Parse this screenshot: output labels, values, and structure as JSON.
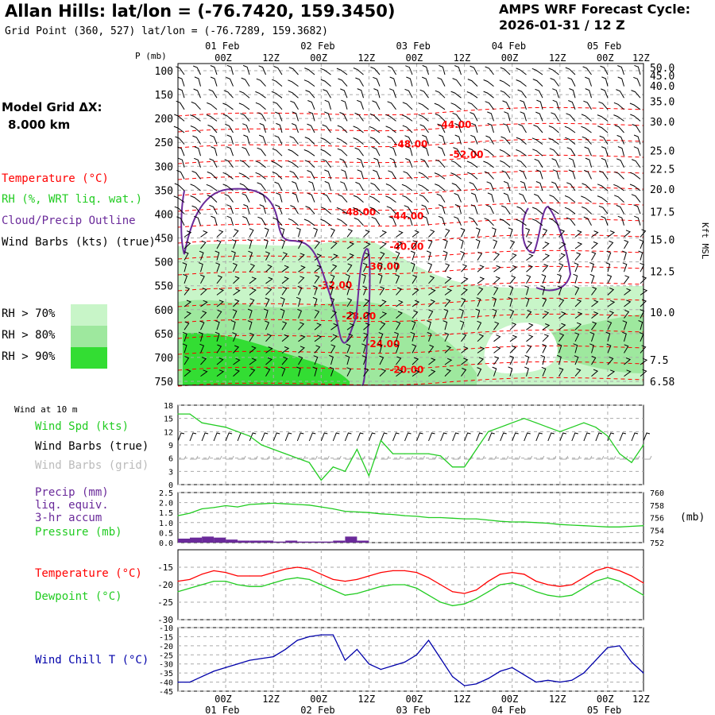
{
  "header": {
    "title": "Allan Hills:  lat/lon = (-76.7420, 159.3450)",
    "grid_point": "Grid Point (360, 527) lat/lon = (-76.7289, 159.3682)",
    "cycle_line1": "AMPS WRF Forecast Cycle:",
    "cycle_line2": "2026-01-31 / 12  Z",
    "model_dx_label": "Model Grid ΔX:",
    "model_dx_value": "8.000 km"
  },
  "legend": {
    "temperature": "Temperature (°C)",
    "rh": "RH (%, WRT liq. wat.)",
    "cloud": "Cloud/Precip Outline",
    "wind": "Wind Barbs (kts) (true)",
    "rh70": "RH > 70%",
    "rh80": "RH > 80%",
    "rh90": "RH > 90%",
    "wind10m": "Wind at 10 m",
    "wind_spd": "Wind Spd (kts)",
    "barbs_true": "Wind Barbs (true)",
    "barbs_grid": "Wind Barbs (grid)",
    "precip1": "Precip (mm)",
    "precip2": "liq. equiv.",
    "precip3": "3-hr accum",
    "pressure": "Pressure (mb)",
    "temp2": "Temperature (°C)",
    "dewpoint": "Dewpoint (°C)",
    "windchill": "Wind Chill T (°C)"
  },
  "colors": {
    "temp": "#ff0000",
    "green": "#22cc22",
    "cloud": "#6a2a9a",
    "chill": "#0000aa",
    "precip": "#6a2a9a",
    "rh70": "#c8f5c8",
    "rh80": "#9ee89e",
    "rh90": "#33dd33",
    "grey": "#aaaaaa"
  },
  "chart_data": [
    {
      "type": "heatmap",
      "name": "time-height cross section",
      "y_title": "P (mb)",
      "y_right_title": "Kft MSL",
      "ylim": [
        100,
        750
      ],
      "time_range_hours": [
        0,
        117
      ],
      "pressure_ticks": [
        "100",
        "150",
        "200",
        "250",
        "300",
        "350",
        "400",
        "450",
        "500",
        "550",
        "600",
        "650",
        "700",
        "750"
      ],
      "kft_ticks": [
        {
          "label": "50.0",
          "p": 93
        },
        {
          "label": "45.0",
          "p": 110
        },
        {
          "label": "40.0",
          "p": 132
        },
        {
          "label": "35.0",
          "p": 164
        },
        {
          "label": "30.0",
          "p": 206
        },
        {
          "label": "25.0",
          "p": 267
        },
        {
          "label": "22.5",
          "p": 305
        },
        {
          "label": "20.0",
          "p": 348
        },
        {
          "label": "17.5",
          "p": 395
        },
        {
          "label": "15.0",
          "p": 453
        },
        {
          "label": "12.5",
          "p": 520
        },
        {
          "label": "10.0",
          "p": 605
        },
        {
          "label": "7.5",
          "p": 705
        },
        {
          "label": "6.58",
          "p": 750
        }
      ],
      "temperature_labels": [
        {
          "text": "-44.00",
          "t": 66,
          "p": 213
        },
        {
          "text": "-48.00",
          "t": 55,
          "p": 254
        },
        {
          "text": "-52.00",
          "t": 69,
          "p": 275
        },
        {
          "text": "-48.00",
          "t": 42,
          "p": 396
        },
        {
          "text": "-44.00",
          "t": 54,
          "p": 404
        },
        {
          "text": "-40.00",
          "t": 54,
          "p": 468
        },
        {
          "text": "-36.00",
          "t": 48,
          "p": 510
        },
        {
          "text": "-32.00",
          "t": 36,
          "p": 549
        },
        {
          "text": "-28.00",
          "t": 42,
          "p": 614
        },
        {
          "text": "-24.00",
          "t": 48,
          "p": 672
        },
        {
          "text": "-20.00",
          "t": 54,
          "p": 726
        }
      ]
    },
    {
      "type": "line",
      "name": "wind speed 10 m",
      "ylim": [
        0,
        18
      ],
      "y_ticks": [
        "0",
        "3",
        "6",
        "9",
        "12",
        "15",
        "18"
      ],
      "x_hours": [
        0,
        3,
        6,
        9,
        12,
        15,
        18,
        21,
        24,
        27,
        30,
        33,
        36,
        39,
        42,
        45,
        48,
        51,
        54,
        57,
        60,
        63,
        66,
        69,
        72,
        75,
        78,
        81,
        84,
        87,
        90,
        93,
        96,
        99,
        102,
        105,
        108,
        111,
        114,
        117
      ],
      "series": [
        {
          "name": "Wind Spd (kts)",
          "values": [
            16,
            16,
            14,
            13.5,
            13,
            12,
            11,
            9,
            8,
            7,
            6,
            5,
            1,
            4,
            3,
            8,
            2,
            10,
            7,
            7,
            7,
            7,
            6.5,
            4,
            4,
            8,
            12,
            13,
            14,
            15,
            14,
            13,
            12,
            13,
            14,
            13,
            11,
            7,
            5,
            9
          ]
        }
      ]
    },
    {
      "type": "bar",
      "name": "precip and pressure",
      "ylim": [
        0,
        2.5
      ],
      "y_ticks": [
        "0.0",
        "0.5",
        "1.0",
        "1.5",
        "2.0",
        "2.5"
      ],
      "y2lim": [
        752,
        760
      ],
      "y2_ticks": [
        "752",
        "754",
        "756",
        "758",
        "760"
      ],
      "y2_unit": "(mb)",
      "precip_values": [
        0.2,
        0.25,
        0.3,
        0.25,
        0.15,
        0.1,
        0.1,
        0.1,
        0.05,
        0.1,
        0.05,
        0.05,
        0.05,
        0.1,
        0.3,
        0.1,
        0,
        0,
        0,
        0,
        0,
        0,
        0,
        0,
        0,
        0,
        0,
        0,
        0,
        0,
        0,
        0,
        0,
        0,
        0,
        0,
        0,
        0,
        0,
        0
      ],
      "pressure_values": [
        756.3,
        756.7,
        757.4,
        757.6,
        757.9,
        757.7,
        758.1,
        758.2,
        758.3,
        758.2,
        758.1,
        758.0,
        757.7,
        757.4,
        757.0,
        756.9,
        756.8,
        756.6,
        756.5,
        756.3,
        756.2,
        756.0,
        756.0,
        755.9,
        755.8,
        755.8,
        755.6,
        755.4,
        755.3,
        755.3,
        755.2,
        755.1,
        754.9,
        754.8,
        754.7,
        754.6,
        754.5,
        754.5,
        754.6,
        754.7
      ]
    },
    {
      "type": "line",
      "name": "temperature and dewpoint",
      "ylim": [
        -30,
        -10
      ],
      "y_ticks": [
        "-30",
        "-25",
        "-20",
        "-15"
      ],
      "series": [
        {
          "name": "Temperature",
          "values": [
            -19,
            -18.5,
            -17,
            -16,
            -16.5,
            -17.5,
            -17.5,
            -17.5,
            -16.5,
            -15.5,
            -15,
            -15.5,
            -17,
            -18.5,
            -19,
            -18.5,
            -17.5,
            -16.5,
            -16,
            -16,
            -16.5,
            -18,
            -20,
            -22,
            -22.5,
            -21.5,
            -19,
            -17,
            -16.5,
            -17,
            -19,
            -20,
            -20.5,
            -20,
            -18,
            -16,
            -15,
            -16,
            -17.5,
            -19.5
          ]
        },
        {
          "name": "Dewpoint",
          "values": [
            -22,
            -21,
            -20,
            -19,
            -19,
            -20,
            -20.5,
            -20.5,
            -19.5,
            -18.5,
            -18,
            -18.5,
            -20,
            -21.5,
            -23,
            -22.5,
            -21.5,
            -20.5,
            -20,
            -20,
            -21,
            -23,
            -25,
            -26,
            -25.5,
            -24,
            -22,
            -20,
            -19.5,
            -20.5,
            -22,
            -23,
            -23.5,
            -23,
            -21,
            -19,
            -18,
            -19,
            -21,
            -23
          ]
        }
      ]
    },
    {
      "type": "line",
      "name": "wind chill",
      "ylim": [
        -45,
        -10
      ],
      "y_ticks": [
        "-45",
        "-40",
        "-35",
        "-30",
        "-25",
        "-20",
        "-15",
        "-10"
      ],
      "series": [
        {
          "name": "Wind Chill T",
          "values": [
            -40,
            -40,
            -37,
            -34,
            -32,
            -30,
            -28,
            -27,
            -26,
            -22,
            -17,
            -15,
            -14,
            -14,
            -28,
            -22,
            -30,
            -33,
            -31,
            -29,
            -25,
            -17,
            -27,
            -37,
            -42,
            -41,
            -38,
            -34,
            -32,
            -36,
            -40,
            -39,
            -40,
            -39,
            -35,
            -28,
            -21,
            -20,
            -29,
            -35
          ]
        }
      ]
    }
  ],
  "time_axis": {
    "top_labels": [
      "00Z",
      "12Z",
      "00Z",
      "12Z",
      "00Z",
      "12Z",
      "00Z",
      "12Z",
      "00Z",
      "12Z"
    ],
    "top_hours": [
      12,
      24,
      36,
      48,
      60,
      72,
      84,
      96,
      108,
      117
    ],
    "date_labels": [
      "01 Feb",
      "02 Feb",
      "03 Feb",
      "04 Feb",
      "05 Feb"
    ],
    "date_hours": [
      12,
      36,
      60,
      84,
      108
    ],
    "bottom_labels": [
      "00Z",
      "12Z",
      "00Z",
      "12Z",
      "00Z",
      "12Z",
      "00Z",
      "12Z",
      "00Z",
      "12Z"
    ],
    "bottom_hours": [
      12,
      24,
      36,
      48,
      60,
      72,
      84,
      96,
      108,
      117
    ]
  }
}
